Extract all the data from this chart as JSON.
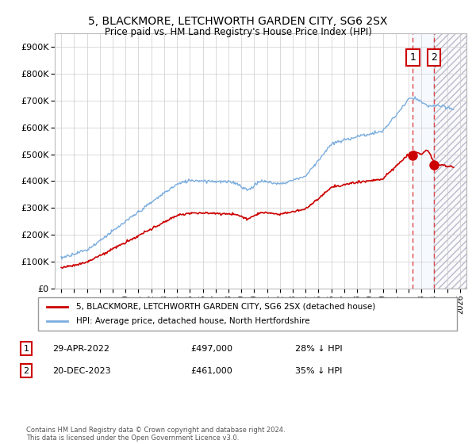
{
  "title": "5, BLACKMORE, LETCHWORTH GARDEN CITY, SG6 2SX",
  "subtitle": "Price paid vs. HM Land Registry's House Price Index (HPI)",
  "legend_line1": "5, BLACKMORE, LETCHWORTH GARDEN CITY, SG6 2SX (detached house)",
  "legend_line2": "HPI: Average price, detached house, North Hertfordshire",
  "annotation1_label": "1",
  "annotation1_date": "29-APR-2022",
  "annotation1_price": "£497,000",
  "annotation1_hpi": "28% ↓ HPI",
  "annotation2_label": "2",
  "annotation2_date": "20-DEC-2023",
  "annotation2_price": "£461,000",
  "annotation2_hpi": "35% ↓ HPI",
  "footer": "Contains HM Land Registry data © Crown copyright and database right 2024.\nThis data is licensed under the Open Government Licence v3.0.",
  "hpi_color": "#7aadde",
  "sale_color": "#cc0000",
  "annotation_color": "#cc0000",
  "dashed_line_color": "#dd4444",
  "shaded_region_color": "#ddeeff",
  "hatch_color": "#bbbbcc",
  "ylim": [
    0,
    950000
  ],
  "yticks": [
    0,
    100000,
    200000,
    300000,
    400000,
    500000,
    600000,
    700000,
    800000,
    900000
  ],
  "xlim_start": 1994.5,
  "xlim_end": 2026.5,
  "sale1_year": 2022.33,
  "sale2_year": 2023.97,
  "sale1_price": 497000,
  "sale2_price": 461000
}
